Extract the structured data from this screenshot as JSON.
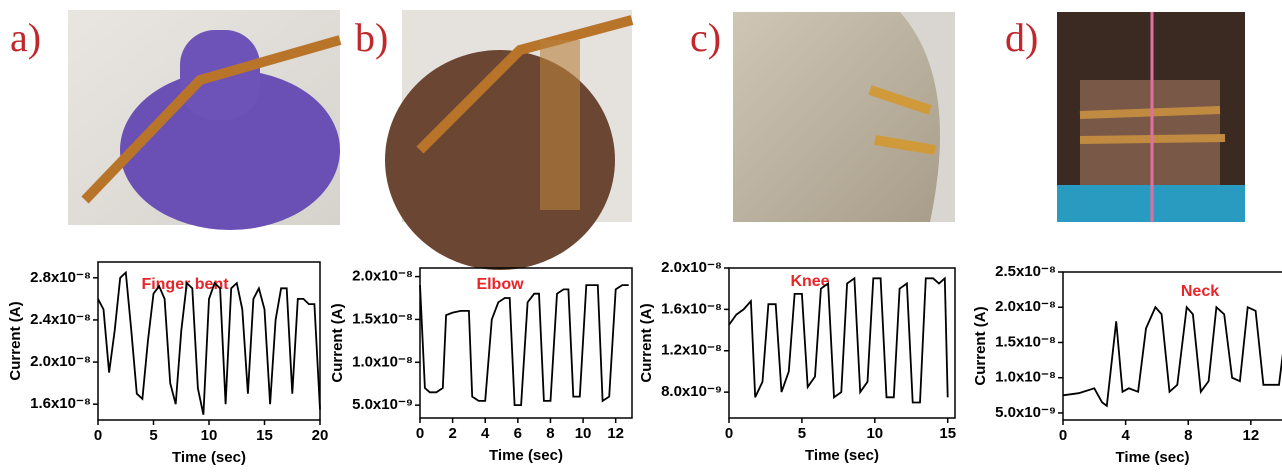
{
  "chart_data": [
    {
      "type": "line",
      "panel_label": "a)",
      "annotation": "Finger bent",
      "xlabel": "Time (sec)",
      "ylabel": "Current (A)",
      "color": "#000000",
      "xlim": [
        0,
        20
      ],
      "xticks": [
        0,
        5,
        10,
        15,
        20
      ],
      "ylim": [
        1.45e-08,
        2.95e-08
      ],
      "yticks": [
        {
          "value": 1.6e-08,
          "label": "1.6x10⁻⁸"
        },
        {
          "value": 2e-08,
          "label": "2.0x10⁻⁸"
        },
        {
          "value": 2.4e-08,
          "label": "2.4x10⁻⁸"
        },
        {
          "value": 2.8e-08,
          "label": "2.8x10⁻⁸"
        }
      ],
      "x": [
        0,
        0.5,
        1,
        1.5,
        2,
        2.5,
        3,
        3.5,
        4,
        4.5,
        5,
        5.5,
        6,
        6.5,
        7,
        7.5,
        8,
        8.5,
        9,
        9.5,
        10,
        10.5,
        11,
        11.5,
        12,
        12.5,
        13,
        13.5,
        14,
        14.5,
        15,
        15.5,
        16,
        16.5,
        17,
        17.5,
        18,
        18.5,
        19,
        19.5,
        20
      ],
      "values": [
        2.6e-08,
        2.5e-08,
        1.9e-08,
        2.3e-08,
        2.8e-08,
        2.85e-08,
        2.3e-08,
        1.7e-08,
        1.65e-08,
        2.2e-08,
        2.65e-08,
        2.72e-08,
        2.6e-08,
        1.8e-08,
        1.6e-08,
        2.3e-08,
        2.75e-08,
        2.7e-08,
        1.75e-08,
        1.5e-08,
        2.6e-08,
        2.75e-08,
        2.7e-08,
        1.6e-08,
        2.7e-08,
        2.75e-08,
        2.5e-08,
        1.7e-08,
        2.6e-08,
        2.7e-08,
        2.5e-08,
        1.6e-08,
        2.4e-08,
        2.7e-08,
        2.7e-08,
        1.7e-08,
        2.6e-08,
        2.6e-08,
        2.55e-08,
        2.55e-08,
        1.55e-08
      ]
    },
    {
      "type": "line",
      "panel_label": "b)",
      "annotation": "Elbow",
      "xlabel": "Time (sec)",
      "ylabel": "Current (A)",
      "color": "#000000",
      "xlim": [
        0,
        13
      ],
      "xticks": [
        0,
        2,
        4,
        6,
        8,
        10,
        12
      ],
      "ylim": [
        3.5e-09,
        2.1e-08
      ],
      "yticks": [
        {
          "value": 5e-09,
          "label": "5.0x10⁻⁹"
        },
        {
          "value": 1e-08,
          "label": "1.0x10⁻⁸"
        },
        {
          "value": 1.5e-08,
          "label": "1.5x10⁻⁸"
        },
        {
          "value": 2e-08,
          "label": "2.0x10⁻⁸"
        }
      ],
      "x": [
        0,
        0.3,
        0.6,
        1,
        1.4,
        1.6,
        2,
        2.5,
        3,
        3.2,
        3.6,
        4,
        4.4,
        4.8,
        5.2,
        5.5,
        5.8,
        6.2,
        6.6,
        7,
        7.3,
        7.6,
        8,
        8.4,
        8.8,
        9.1,
        9.4,
        9.8,
        10.2,
        10.6,
        10.9,
        11.2,
        11.6,
        12,
        12.4,
        12.8
      ],
      "values": [
        1.9e-08,
        7e-09,
        6.5e-09,
        6.5e-09,
        7e-09,
        1.55e-08,
        1.58e-08,
        1.6e-08,
        1.6e-08,
        6e-09,
        5.5e-09,
        5.5e-09,
        1.5e-08,
        1.7e-08,
        1.75e-08,
        1.75e-08,
        5e-09,
        5e-09,
        1.7e-08,
        1.8e-08,
        1.8e-08,
        5.5e-09,
        5.5e-09,
        1.8e-08,
        1.85e-08,
        1.85e-08,
        6e-09,
        6e-09,
        1.9e-08,
        1.9e-08,
        1.9e-08,
        5.5e-09,
        6e-09,
        1.85e-08,
        1.9e-08,
        1.9e-08
      ]
    },
    {
      "type": "line",
      "panel_label": "c)",
      "annotation": "Knee",
      "xlabel": "Time (sec)",
      "ylabel": "Current (A)",
      "color": "#000000",
      "xlim": [
        0,
        15.5
      ],
      "xticks": [
        0,
        5,
        10,
        15
      ],
      "ylim": [
        5.5e-09,
        2e-08
      ],
      "yticks": [
        {
          "value": 8e-09,
          "label": "8.0x10⁻⁹"
        },
        {
          "value": 1.2e-08,
          "label": "1.2x10⁻⁸"
        },
        {
          "value": 1.6e-08,
          "label": "1.6x10⁻⁸"
        },
        {
          "value": 2e-08,
          "label": "2.0x10⁻⁸"
        }
      ],
      "x": [
        0,
        0.5,
        1,
        1.5,
        1.8,
        2.3,
        2.7,
        3.2,
        3.6,
        4.1,
        4.5,
        5,
        5.4,
        5.9,
        6.3,
        6.8,
        7.2,
        7.7,
        8.1,
        8.6,
        9,
        9.5,
        9.9,
        10.4,
        10.8,
        11.3,
        11.7,
        12.2,
        12.6,
        13.1,
        13.5,
        14,
        14.4,
        14.8,
        15
      ],
      "values": [
        1.45e-08,
        1.55e-08,
        1.6e-08,
        1.68e-08,
        7.5e-09,
        9e-09,
        1.65e-08,
        1.65e-08,
        8e-09,
        1e-08,
        1.75e-08,
        1.75e-08,
        8.5e-09,
        9.5e-09,
        1.8e-08,
        1.85e-08,
        7.5e-09,
        8e-09,
        1.85e-08,
        1.9e-08,
        8e-09,
        9e-09,
        1.9e-08,
        1.9e-08,
        7.5e-09,
        7.5e-09,
        1.8e-08,
        1.85e-08,
        7e-09,
        7e-09,
        1.9e-08,
        1.9e-08,
        1.85e-08,
        1.9e-08,
        7.5e-09
      ]
    },
    {
      "type": "line",
      "panel_label": "d)",
      "annotation": "Neck",
      "xlabel": "Time (sec)",
      "ylabel": "Current (A)",
      "color": "#000000",
      "xlim": [
        0,
        14.5
      ],
      "xticks": [
        0,
        4,
        8,
        12
      ],
      "ylim": [
        4e-09,
        2.5e-08
      ],
      "yticks": [
        {
          "value": 5e-09,
          "label": "5.0x10⁻⁹"
        },
        {
          "value": 1e-08,
          "label": "1.0x10⁻⁸"
        },
        {
          "value": 1.5e-08,
          "label": "1.5x10⁻⁸"
        },
        {
          "value": 2e-08,
          "label": "2.0x10⁻⁸"
        },
        {
          "value": 2.5e-08,
          "label": "2.5x10⁻⁸"
        }
      ],
      "x": [
        0,
        1,
        2,
        2.5,
        2.8,
        3.4,
        3.8,
        4.2,
        4.8,
        5.3,
        5.9,
        6.3,
        6.8,
        7.3,
        7.9,
        8.3,
        8.8,
        9.3,
        9.8,
        10.3,
        10.8,
        11.3,
        11.8,
        12.3,
        12.8,
        13.3,
        13.8,
        14.3
      ],
      "values": [
        7.5e-09,
        7.8e-09,
        8.5e-09,
        6.5e-09,
        6e-09,
        1.8e-08,
        8e-09,
        8.5e-09,
        8e-09,
        1.7e-08,
        2e-08,
        1.9e-08,
        8e-09,
        9e-09,
        2e-08,
        1.9e-08,
        8e-09,
        9.5e-09,
        2e-08,
        1.9e-08,
        1e-08,
        9.5e-09,
        2e-08,
        1.95e-08,
        9e-09,
        9e-09,
        9e-09,
        1.8e-08
      ]
    }
  ]
}
